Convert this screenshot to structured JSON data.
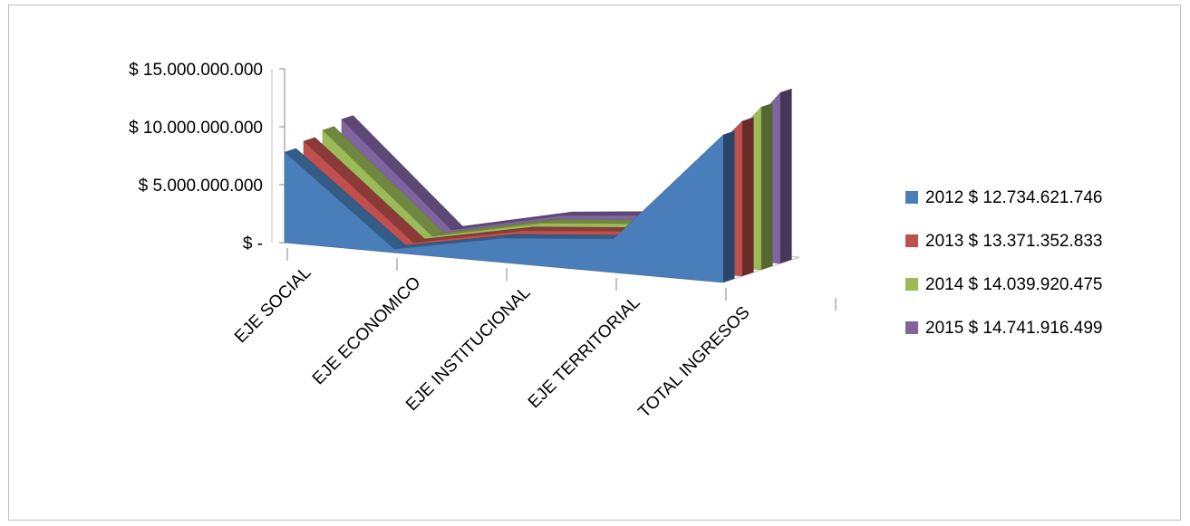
{
  "chart_data": {
    "type": "area",
    "subtype": "3d-area",
    "title": "",
    "categories": [
      "EJE SOCIAL",
      "EJE ECONOMICO",
      "EJE INSTITUCIONAL",
      "EJE TERRITORIAL",
      "TOTAL INGRESOS"
    ],
    "y_ticks": [
      "$ -",
      "$ 5.000.000.000",
      "$ 10.000.000.000",
      "$ 15.000.000.000"
    ],
    "ylim": [
      0,
      15000000000
    ],
    "grid": false,
    "legend_position": "right",
    "series": [
      {
        "name": "2012  $ 12.734.621.746",
        "color": "#4a7ebb",
        "values": [
          7800000000,
          300000000,
          2100000000,
          2900000000,
          12734621746
        ]
      },
      {
        "name": "2013  $ 13.371.352.833",
        "color": "#c0504d",
        "values": [
          8200000000,
          300000000,
          2200000000,
          3000000000,
          13371352833
        ]
      },
      {
        "name": "2014  $ 14.039.920.475",
        "color": "#9bbb59",
        "values": [
          8600000000,
          300000000,
          2300000000,
          3100000000,
          14039920475
        ]
      },
      {
        "name": "2015  $ 14.741.916.499",
        "color": "#8064a2",
        "values": [
          9000000000,
          300000000,
          2400000000,
          3300000000,
          14741916499
        ]
      }
    ]
  }
}
